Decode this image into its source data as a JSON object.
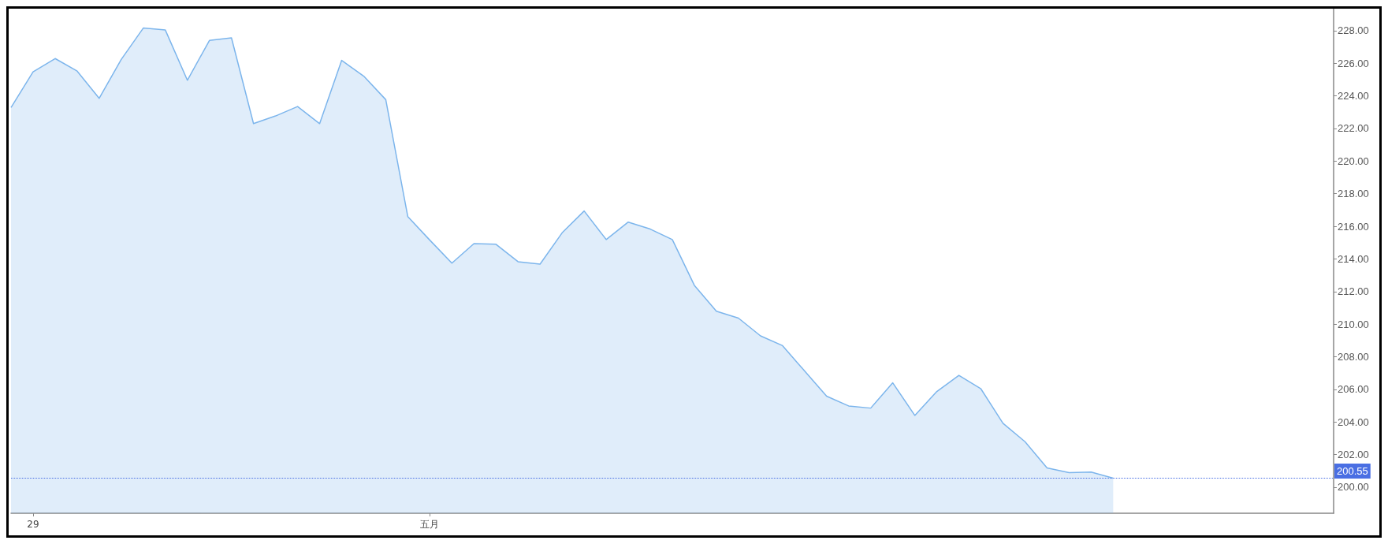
{
  "chart_data": {
    "type": "area",
    "categories": [
      null,
      "29",
      null,
      null,
      null,
      null,
      null,
      null,
      null,
      null,
      null,
      null,
      null,
      null,
      null,
      null,
      null,
      null,
      null,
      "五月",
      null,
      null,
      null,
      null,
      null,
      null,
      null,
      null,
      null,
      null,
      null,
      null,
      null,
      null,
      null,
      null,
      null,
      null,
      null,
      null,
      null,
      null,
      null,
      null,
      null,
      null,
      null,
      null,
      null,
      null,
      null
    ],
    "values": [
      223.29,
      225.48,
      226.29,
      225.52,
      223.85,
      226.24,
      228.16,
      228.04,
      224.96,
      227.4,
      227.56,
      222.3,
      222.77,
      223.35,
      222.3,
      226.18,
      225.21,
      223.77,
      216.59,
      215.15,
      213.74,
      214.94,
      214.9,
      213.83,
      213.68,
      215.6,
      216.94,
      215.19,
      216.26,
      215.83,
      215.19,
      212.38,
      210.79,
      210.37,
      209.28,
      208.68,
      207.13,
      205.58,
      204.98,
      204.85,
      206.4,
      204.4,
      205.87,
      206.86,
      206.03,
      203.92,
      202.79,
      201.18,
      200.89,
      200.93,
      200.55
    ],
    "color": "#7cb5ec",
    "ylim": [
      198.4,
      229.35
    ],
    "yticks": [
      {
        "value": 200,
        "label": "200.00"
      },
      {
        "value": 202,
        "label": "202.00"
      },
      {
        "value": 204,
        "label": "204.00"
      },
      {
        "value": 206,
        "label": "206.00"
      },
      {
        "value": 208,
        "label": "208.00"
      },
      {
        "value": 210,
        "label": "210.00"
      },
      {
        "value": 212,
        "label": "212.00"
      },
      {
        "value": 214,
        "label": "214.00"
      },
      {
        "value": 216,
        "label": "216.00"
      },
      {
        "value": 218,
        "label": "218.00"
      },
      {
        "value": 220,
        "label": "220.00"
      },
      {
        "value": 222,
        "label": "222.00"
      },
      {
        "value": 224,
        "label": "224.00"
      },
      {
        "value": 226,
        "label": "226.00"
      },
      {
        "value": 228,
        "label": "228.00"
      }
    ],
    "ref_lines": [
      {
        "axis": "y",
        "value": 200.55,
        "label": "200.55",
        "color": "#4a6fe3",
        "line_style": "dotted"
      }
    ],
    "grid": false,
    "marker": "none"
  }
}
